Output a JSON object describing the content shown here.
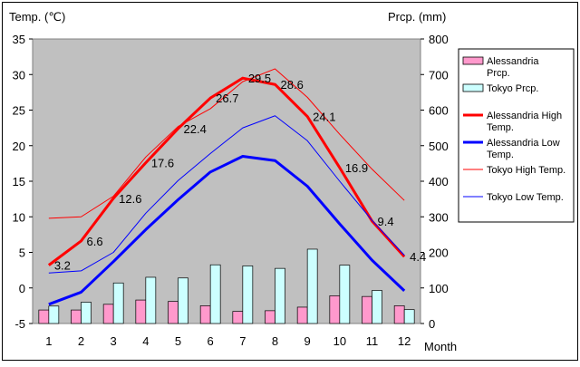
{
  "chart_data": {
    "type": "bar+line",
    "categories": [
      "1",
      "2",
      "3",
      "4",
      "5",
      "6",
      "7",
      "8",
      "9",
      "10",
      "11",
      "12"
    ],
    "xlabel": "Month",
    "left_axis": {
      "label": "Temp. (℃)",
      "range": [
        -5,
        35
      ],
      "ticks": [
        "-5",
        "0",
        "5",
        "10",
        "15",
        "20",
        "25",
        "30",
        "35"
      ]
    },
    "right_axis": {
      "label": "Prcp. (mm)",
      "range": [
        0,
        800
      ],
      "ticks": [
        "0",
        "100",
        "200",
        "300",
        "400",
        "500",
        "600",
        "700",
        "800"
      ]
    },
    "grid": false,
    "legend_position": "right",
    "bar_series": [
      {
        "name": "Alessandria Prcp.",
        "color": "#ff99cc",
        "values": [
          38,
          38,
          54,
          66,
          62,
          50,
          34,
          36,
          46,
          78,
          76,
          50
        ]
      },
      {
        "name": "Tokyo Prcp.",
        "color": "#ccffff",
        "values": [
          49,
          60,
          114,
          130,
          128,
          165,
          162,
          155,
          209,
          164,
          93,
          39
        ]
      }
    ],
    "line_series": [
      {
        "name": "Alessandria High Temp.",
        "color": "#ff0000",
        "width": 3,
        "values": [
          3.2,
          6.6,
          12.6,
          17.6,
          22.4,
          26.7,
          29.5,
          28.6,
          24.1,
          16.9,
          9.4,
          4.4
        ],
        "data_labels": [
          "3.2",
          "6.6",
          "12.6",
          "17.6",
          "22.4",
          "26.7",
          "29.5",
          "28.6",
          "24.1",
          "16.9",
          "9.4",
          "4.4"
        ]
      },
      {
        "name": "Alessandria Low Temp.",
        "color": "#0000ff",
        "width": 3,
        "values": [
          -2.3,
          -0.6,
          3.7,
          8.2,
          12.4,
          16.3,
          18.5,
          17.9,
          14.3,
          9.0,
          3.9,
          -0.4
        ]
      },
      {
        "name": "Tokyo High Temp.",
        "color": "#ff0000",
        "width": 1,
        "values": [
          9.8,
          10.0,
          12.9,
          18.4,
          22.7,
          25.2,
          29.0,
          30.8,
          26.8,
          21.6,
          16.7,
          12.3
        ]
      },
      {
        "name": "Tokyo Low Temp.",
        "color": "#0000ff",
        "width": 1,
        "values": [
          2.1,
          2.4,
          5.0,
          10.5,
          15.1,
          18.9,
          22.5,
          24.2,
          20.7,
          15.0,
          9.5,
          4.6
        ]
      }
    ]
  }
}
